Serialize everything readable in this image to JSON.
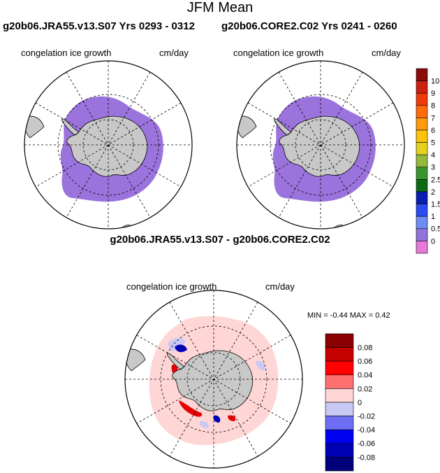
{
  "title": "JFM Mean",
  "panels": [
    {
      "title": "g20b06.JRA55.v13.S07  Yrs 0293 - 0312",
      "variable": "congelation ice growth",
      "units": "cm/day"
    },
    {
      "title": "g20b06.CORE2.C02  Yrs 0241 - 0260",
      "variable": "congelation ice growth",
      "units": "cm/day"
    }
  ],
  "diff": {
    "title": "g20b06.JRA55.v13.S07 - g20b06.CORE2.C02",
    "variable": "congelation ice growth",
    "units": "cm/day",
    "minmax": "MIN =  -0.44 MAX =    0.42"
  },
  "colorbar_top": {
    "labels": [
      "10",
      "9",
      "8",
      "7",
      "6",
      "5",
      "4",
      "3",
      "2.5",
      "2",
      "1.5",
      "1",
      "0.5",
      "0"
    ],
    "colors": [
      "#8b0a0a",
      "#cc1f0f",
      "#f03c0a",
      "#ff6a0a",
      "#ff9a0a",
      "#ffc40a",
      "#e5d21e",
      "#94b83c",
      "#39962f",
      "#0b6b14",
      "#0a1eb4",
      "#2b4cf0",
      "#6e8df5",
      "#9073dc",
      "#e67ad9"
    ]
  },
  "colorbar_diff": {
    "labels": [
      "0.08",
      "0.06",
      "0.04",
      "0.02",
      "0",
      "-0.02",
      "-0.04",
      "-0.06",
      "-0.08"
    ],
    "colors": [
      "#8b0000",
      "#c40000",
      "#ff0000",
      "#ff7070",
      "#ffd6d6",
      "#c8c8f5",
      "#6e6ef5",
      "#0000f0",
      "#0000b4",
      "#00007a"
    ]
  }
}
